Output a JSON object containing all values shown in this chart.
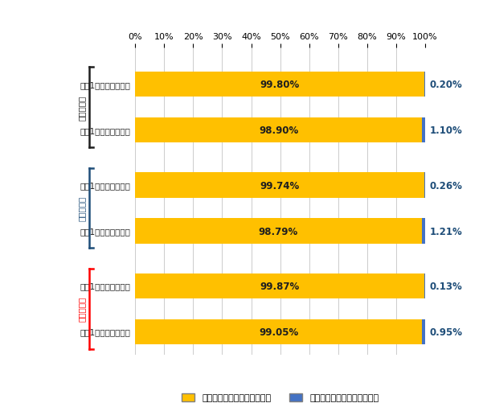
{
  "categories": [
    "過去1年飲酒経験なし",
    "過去1年飲酒経験あり",
    "過去1年飲酒経験なし",
    "過去1年飲酒経験あり",
    "過去1年飲酒経験なし",
    "過去1年飲酒経験あり"
  ],
  "group_labels": [
    "中学生全体",
    "男子中学生",
    "女子中学生"
  ],
  "no_drug": [
    99.8,
    98.9,
    99.74,
    98.79,
    99.87,
    99.05
  ],
  "yes_drug": [
    0.2,
    1.1,
    0.26,
    1.21,
    0.13,
    0.95
  ],
  "bar_color_no": "#FFC000",
  "bar_color_yes": "#4472C4",
  "label_color_no": "#1F1F1F",
  "label_color_yes": "#1F4E79",
  "bracket_colors": [
    "#1F1F1F",
    "#1F4E79",
    "#FF0000"
  ],
  "legend_label_no": "危険ドラッグの生涯経験なし",
  "legend_label_yes": "危険ドラッグの生涯経験あり",
  "xlim": [
    0,
    100
  ],
  "bar_height": 0.55,
  "fig_bg": "#FFFFFF",
  "grid_color": "#CCCCCC"
}
